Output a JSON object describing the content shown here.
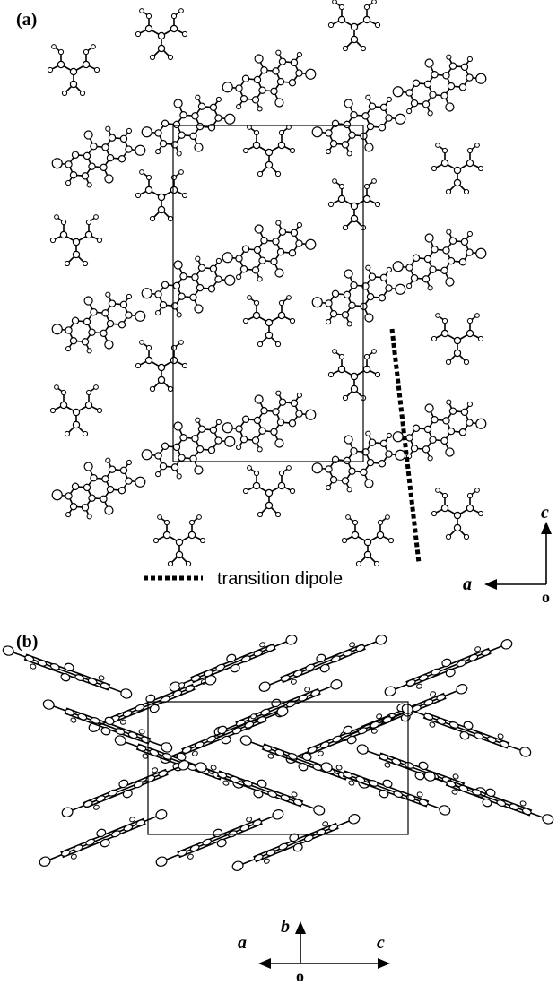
{
  "panels": [
    {
      "label": "(a)",
      "legend": "transition dipole",
      "axes": {
        "vertical": "c",
        "horizontal": "a",
        "origin": "o"
      }
    },
    {
      "label": "(b)",
      "axes": {
        "vertical": "b",
        "left": "a",
        "right": "c",
        "origin": "o"
      }
    }
  ]
}
